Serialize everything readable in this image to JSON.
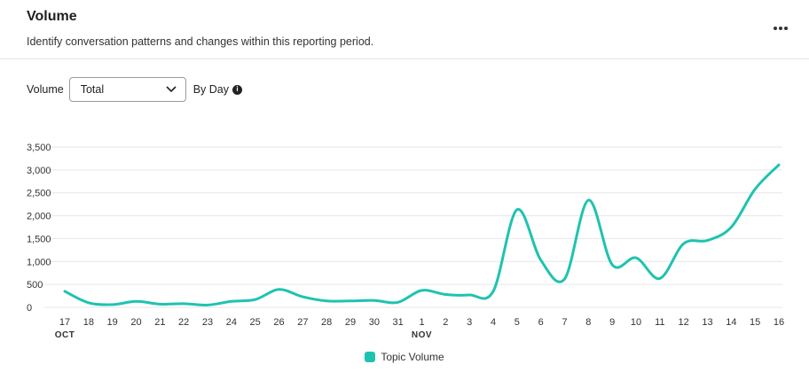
{
  "header": {
    "title": "Volume",
    "subtitle": "Identify conversation patterns and changes within this reporting period.",
    "menu_icon": "more-horizontal-icon"
  },
  "controls": {
    "metric_label": "Volume",
    "metric_select_value": "Total",
    "period_label": "By Day",
    "info_icon": "info-icon"
  },
  "colors": {
    "series": "#1ec3b0",
    "grid": "#e6e6e6",
    "text": "#333333"
  },
  "chart_data": {
    "type": "line",
    "x": [
      "17",
      "18",
      "19",
      "20",
      "21",
      "22",
      "23",
      "24",
      "25",
      "26",
      "27",
      "28",
      "29",
      "30",
      "31",
      "1",
      "2",
      "3",
      "4",
      "5",
      "6",
      "7",
      "8",
      "9",
      "10",
      "11",
      "12",
      "13",
      "14",
      "15",
      "16"
    ],
    "month_labels": [
      {
        "index": 0,
        "label": "OCT"
      },
      {
        "index": 15,
        "label": "NOV"
      }
    ],
    "series": [
      {
        "name": "Topic Volume",
        "values": [
          350,
          100,
          60,
          130,
          70,
          80,
          50,
          130,
          170,
          390,
          230,
          140,
          140,
          150,
          110,
          370,
          280,
          270,
          350,
          2130,
          1030,
          620,
          2340,
          930,
          1080,
          630,
          1390,
          1460,
          1750,
          2580,
          3110
        ]
      }
    ],
    "yticks": [
      0,
      500,
      1000,
      1500,
      2000,
      2500,
      3000,
      3500
    ],
    "ytick_labels": [
      "0",
      "500",
      "1,000",
      "1,500",
      "2,000",
      "2,500",
      "3,000",
      "3,500"
    ],
    "ylim": [
      0,
      3500
    ],
    "grid": true,
    "legend_position": "bottom-center"
  }
}
